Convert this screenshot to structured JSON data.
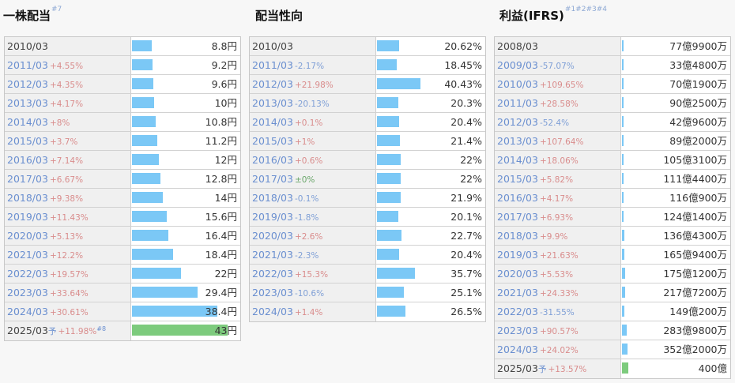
{
  "colors": {
    "bar": "#7bc8f6",
    "bar_forecast": "#7dcb7d",
    "increase": "#d98c8c",
    "decrease": "#7f9fd6",
    "neutral": "#6aa66a"
  },
  "dividend": {
    "title": "一株配当",
    "title_note": "#7",
    "rows": [
      {
        "year": "2010/03",
        "change": "",
        "dir": "",
        "value": "8.8円",
        "level": 0.093
      },
      {
        "year": "2011/03",
        "change": "+4.55%",
        "dir": "up",
        "value": "9.2円",
        "level": 0.098
      },
      {
        "year": "2012/03",
        "change": "+4.35%",
        "dir": "up",
        "value": "9.6円",
        "level": 0.102
      },
      {
        "year": "2013/03",
        "change": "+4.17%",
        "dir": "up",
        "value": "10円",
        "level": 0.106
      },
      {
        "year": "2014/03",
        "change": "+8%",
        "dir": "up",
        "value": "10.8円",
        "level": 0.115
      },
      {
        "year": "2015/03",
        "change": "+3.7%",
        "dir": "up",
        "value": "11.2円",
        "level": 0.119
      },
      {
        "year": "2016/03",
        "change": "+7.14%",
        "dir": "up",
        "value": "12円",
        "level": 0.128
      },
      {
        "year": "2017/03",
        "change": "+6.67%",
        "dir": "up",
        "value": "12.8円",
        "level": 0.136
      },
      {
        "year": "2018/03",
        "change": "+9.38%",
        "dir": "up",
        "value": "14円",
        "level": 0.149
      },
      {
        "year": "2019/03",
        "change": "+11.43%",
        "dir": "up",
        "value": "15.6円",
        "level": 0.166
      },
      {
        "year": "2020/03",
        "change": "+5.13%",
        "dir": "up",
        "value": "16.4円",
        "level": 0.174
      },
      {
        "year": "2021/03",
        "change": "+12.2%",
        "dir": "up",
        "value": "18.4円",
        "level": 0.196
      },
      {
        "year": "2022/03",
        "change": "+19.57%",
        "dir": "up",
        "value": "22円",
        "level": 0.234
      },
      {
        "year": "2023/03",
        "change": "+33.64%",
        "dir": "up",
        "value": "29.4円",
        "level": 0.313
      },
      {
        "year": "2024/03",
        "change": "+30.61%",
        "dir": "up",
        "value": "38.4円",
        "level": 0.408
      },
      {
        "year": "2025/03",
        "change": "+11.98%",
        "dir": "up",
        "value": "43円",
        "level": 0.457,
        "forecast": true,
        "forecast_mark": "予",
        "note": "#8"
      }
    ]
  },
  "payout": {
    "title": "配当性向",
    "rows": [
      {
        "year": "2010/03",
        "change": "",
        "dir": "",
        "value": "20.62%",
        "level": 0.2062
      },
      {
        "year": "2011/03",
        "change": "-2.17%",
        "dir": "down",
        "value": "18.45%",
        "level": 0.1845
      },
      {
        "year": "2012/03",
        "change": "+21.98%",
        "dir": "up",
        "value": "40.43%",
        "level": 0.4043
      },
      {
        "year": "2013/03",
        "change": "-20.13%",
        "dir": "down",
        "value": "20.3%",
        "level": 0.203
      },
      {
        "year": "2014/03",
        "change": "+0.1%",
        "dir": "up",
        "value": "20.4%",
        "level": 0.204
      },
      {
        "year": "2015/03",
        "change": "+1%",
        "dir": "up",
        "value": "21.4%",
        "level": 0.214
      },
      {
        "year": "2016/03",
        "change": "+0.6%",
        "dir": "up",
        "value": "22%",
        "level": 0.22
      },
      {
        "year": "2017/03",
        "change": "±0%",
        "dir": "flat",
        "value": "22%",
        "level": 0.22
      },
      {
        "year": "2018/03",
        "change": "-0.1%",
        "dir": "down",
        "value": "21.9%",
        "level": 0.219
      },
      {
        "year": "2019/03",
        "change": "-1.8%",
        "dir": "down",
        "value": "20.1%",
        "level": 0.201
      },
      {
        "year": "2020/03",
        "change": "+2.6%",
        "dir": "up",
        "value": "22.7%",
        "level": 0.227
      },
      {
        "year": "2021/03",
        "change": "-2.3%",
        "dir": "down",
        "value": "20.4%",
        "level": 0.204
      },
      {
        "year": "2022/03",
        "change": "+15.3%",
        "dir": "up",
        "value": "35.7%",
        "level": 0.357
      },
      {
        "year": "2023/03",
        "change": "-10.6%",
        "dir": "down",
        "value": "25.1%",
        "level": 0.251
      },
      {
        "year": "2024/03",
        "change": "+1.4%",
        "dir": "up",
        "value": "26.5%",
        "level": 0.265
      }
    ]
  },
  "profit": {
    "title": "利益(IFRS)",
    "title_note": "#1#2#3#4",
    "rows": [
      {
        "year": "2008/03",
        "change": "",
        "dir": "",
        "value": "77億9900万",
        "level": 0.0078,
        "plain": true
      },
      {
        "year": "2009/03",
        "change": "-57.07%",
        "dir": "down",
        "value": "33億4800万",
        "level": 0.0033
      },
      {
        "year": "2010/03",
        "change": "+109.65%",
        "dir": "up",
        "value": "70億1900万",
        "level": 0.007
      },
      {
        "year": "2011/03",
        "change": "+28.58%",
        "dir": "up",
        "value": "90億2500万",
        "level": 0.009
      },
      {
        "year": "2012/03",
        "change": "-52.4%",
        "dir": "down",
        "value": "42億9600万",
        "level": 0.0043
      },
      {
        "year": "2013/03",
        "change": "+107.64%",
        "dir": "up",
        "value": "89億2000万",
        "level": 0.0089
      },
      {
        "year": "2014/03",
        "change": "+18.06%",
        "dir": "up",
        "value": "105億3100万",
        "level": 0.0105
      },
      {
        "year": "2015/03",
        "change": "+5.82%",
        "dir": "up",
        "value": "111億4400万",
        "level": 0.0111
      },
      {
        "year": "2016/03",
        "change": "+4.17%",
        "dir": "up",
        "value": "116億900万",
        "level": 0.0116
      },
      {
        "year": "2017/03",
        "change": "+6.93%",
        "dir": "up",
        "value": "124億1400万",
        "level": 0.0124
      },
      {
        "year": "2018/03",
        "change": "+9.9%",
        "dir": "up",
        "value": "136億4300万",
        "level": 0.0136
      },
      {
        "year": "2019/03",
        "change": "+21.63%",
        "dir": "up",
        "value": "165億9400万",
        "level": 0.0166
      },
      {
        "year": "2020/03",
        "change": "+5.53%",
        "dir": "up",
        "value": "175億1200万",
        "level": 0.0175
      },
      {
        "year": "2021/03",
        "change": "+24.33%",
        "dir": "up",
        "value": "217億7200万",
        "level": 0.0218
      },
      {
        "year": "2022/03",
        "change": "-31.55%",
        "dir": "down",
        "value": "149億200万",
        "level": 0.0149
      },
      {
        "year": "2023/03",
        "change": "+90.57%",
        "dir": "up",
        "value": "283億9800万",
        "level": 0.0284
      },
      {
        "year": "2024/03",
        "change": "+24.02%",
        "dir": "up",
        "value": "352億2000万",
        "level": 0.0352
      },
      {
        "year": "2025/03",
        "change": "+13.57%",
        "dir": "up",
        "value": "400億",
        "level": 0.04,
        "forecast": true,
        "forecast_mark": "予"
      }
    ]
  }
}
